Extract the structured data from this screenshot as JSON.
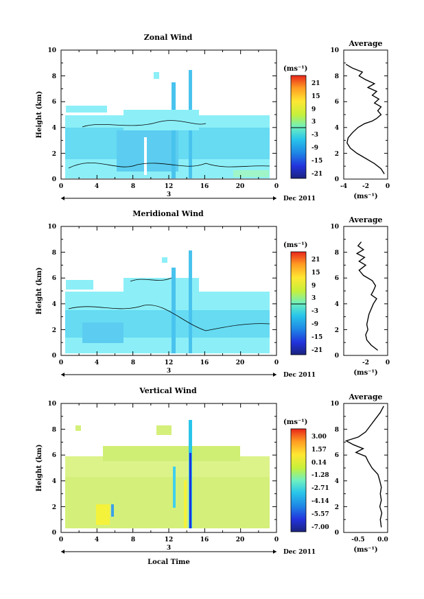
{
  "figure": {
    "date_label": "Dec 2011",
    "day_label": "3",
    "xlabel_bottom": "Local Time"
  },
  "chart_data": [
    {
      "type": "heatmap",
      "title": "Zonal Wind",
      "xlabel": "",
      "ylabel": "Height (km)",
      "xlim": [
        0,
        24
      ],
      "ylim": [
        0,
        10
      ],
      "x_ticks": [
        "0",
        "4",
        "8",
        "12",
        "16",
        "20",
        "0"
      ],
      "y_ticks": [
        "0",
        "2",
        "4",
        "6",
        "8",
        "10"
      ],
      "colorbar": {
        "unit_label": "(ms⁻¹)",
        "ticks": [
          "21",
          "15",
          "9",
          "3",
          "-3",
          "-9",
          "-15",
          "-21"
        ],
        "range": [
          -24,
          24
        ]
      },
      "average": {
        "title": "Average",
        "unit_label": "(ms⁻¹)",
        "xlim": [
          -4,
          0
        ],
        "x_ticks": [
          "-4",
          "-2",
          "0"
        ],
        "y_ticks": [
          "0",
          "2",
          "4",
          "6",
          "8",
          "10"
        ],
        "profile": [
          [
            0.4,
            -0.3
          ],
          [
            0.8,
            -0.6
          ],
          [
            1.2,
            -1.2
          ],
          [
            1.6,
            -2.0
          ],
          [
            2.0,
            -2.8
          ],
          [
            2.4,
            -3.4
          ],
          [
            2.8,
            -3.7
          ],
          [
            3.2,
            -3.6
          ],
          [
            3.6,
            -3.2
          ],
          [
            4.0,
            -2.7
          ],
          [
            4.3,
            -2.1
          ],
          [
            4.5,
            -1.4
          ],
          [
            4.7,
            -1.0
          ],
          [
            5.0,
            -0.6
          ],
          [
            5.3,
            -0.9
          ],
          [
            5.6,
            -0.6
          ],
          [
            5.9,
            -1.2
          ],
          [
            6.2,
            -0.8
          ],
          [
            6.5,
            -1.4
          ],
          [
            6.8,
            -1.0
          ],
          [
            7.1,
            -1.8
          ],
          [
            7.4,
            -1.2
          ],
          [
            7.7,
            -2.0
          ],
          [
            8.0,
            -2.6
          ],
          [
            8.3,
            -2.3
          ],
          [
            8.6,
            -3.2
          ],
          [
            8.9,
            -3.8
          ]
        ]
      }
    },
    {
      "type": "heatmap",
      "title": "Meridional Wind",
      "xlabel": "",
      "ylabel": "Height (km)",
      "xlim": [
        0,
        24
      ],
      "ylim": [
        0,
        10
      ],
      "x_ticks": [
        "0",
        "4",
        "8",
        "12",
        "16",
        "20",
        "0"
      ],
      "y_ticks": [
        "0",
        "2",
        "4",
        "6",
        "8",
        "10"
      ],
      "colorbar": {
        "unit_label": "(ms⁻¹)",
        "ticks": [
          "21",
          "15",
          "9",
          "3",
          "-3",
          "-9",
          "-15",
          "-21"
        ],
        "range": [
          -24,
          24
        ]
      },
      "average": {
        "title": "Average",
        "unit_label": "(ms⁻¹)",
        "xlim": [
          -4,
          0
        ],
        "x_ticks": [
          "-2",
          "0"
        ],
        "y_ticks": [
          "0",
          "2",
          "4",
          "6",
          "8",
          "10"
        ],
        "profile": [
          [
            0.4,
            -0.9
          ],
          [
            0.8,
            -1.5
          ],
          [
            1.2,
            -1.9
          ],
          [
            1.6,
            -2.0
          ],
          [
            2.0,
            -1.8
          ],
          [
            2.4,
            -1.9
          ],
          [
            2.8,
            -1.8
          ],
          [
            3.2,
            -1.7
          ],
          [
            3.6,
            -1.5
          ],
          [
            4.0,
            -1.3
          ],
          [
            4.4,
            -1.0
          ],
          [
            4.7,
            -1.5
          ],
          [
            5.0,
            -1.3
          ],
          [
            5.4,
            -1.1
          ],
          [
            5.8,
            -1.4
          ],
          [
            6.2,
            -2.2
          ],
          [
            6.6,
            -2.6
          ],
          [
            7.0,
            -2.0
          ],
          [
            7.3,
            -2.6
          ],
          [
            7.6,
            -2.1
          ],
          [
            7.9,
            -2.8
          ],
          [
            8.2,
            -2.2
          ],
          [
            8.5,
            -2.7
          ],
          [
            8.8,
            -2.4
          ]
        ]
      }
    },
    {
      "type": "heatmap",
      "title": "Vertical Wind",
      "xlabel": "Local Time",
      "ylabel": "Height (km)",
      "xlim": [
        0,
        24
      ],
      "ylim": [
        0,
        10
      ],
      "x_ticks": [
        "0",
        "4",
        "8",
        "12",
        "16",
        "20",
        "0"
      ],
      "y_ticks": [
        "0",
        "2",
        "4",
        "6",
        "8",
        "10"
      ],
      "colorbar": {
        "unit_label": "(ms⁻¹)",
        "ticks": [
          "3.00",
          "1.57",
          "0.14",
          "-1.28",
          "-2.71",
          "-4.14",
          "-5.57",
          "-7.00"
        ],
        "range": [
          -7.8,
          3.8
        ]
      },
      "average": {
        "title": "Average",
        "unit_label": "(ms⁻¹)",
        "xlim": [
          -0.8,
          0.1
        ],
        "x_ticks": [
          "-0.5",
          "0.0"
        ],
        "y_ticks": [
          "0",
          "2",
          "4",
          "6",
          "8",
          "10"
        ],
        "profile": [
          [
            0.4,
            -0.03
          ],
          [
            1.0,
            -0.05
          ],
          [
            1.5,
            -0.02
          ],
          [
            2.0,
            -0.06
          ],
          [
            2.5,
            -0.03
          ],
          [
            3.0,
            -0.05
          ],
          [
            3.5,
            -0.03
          ],
          [
            4.0,
            -0.06
          ],
          [
            4.5,
            -0.1
          ],
          [
            5.0,
            -0.22
          ],
          [
            5.5,
            -0.3
          ],
          [
            5.9,
            -0.35
          ],
          [
            6.2,
            -0.55
          ],
          [
            6.5,
            -0.4
          ],
          [
            6.8,
            -0.6
          ],
          [
            7.1,
            -0.75
          ],
          [
            7.4,
            -0.5
          ],
          [
            7.8,
            -0.35
          ],
          [
            8.3,
            -0.25
          ],
          [
            8.8,
            -0.15
          ],
          [
            9.3,
            -0.05
          ],
          [
            9.8,
            0.02
          ]
        ]
      }
    }
  ]
}
